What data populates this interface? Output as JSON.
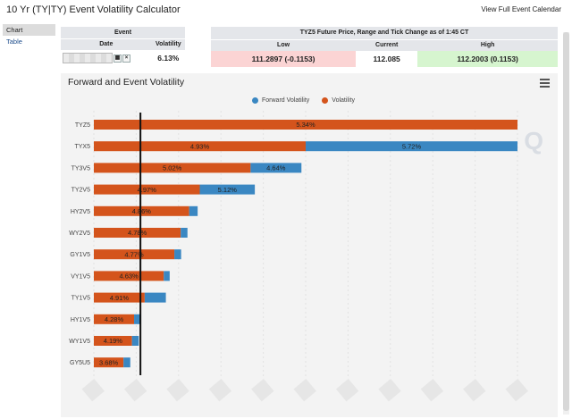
{
  "app": {
    "title": "10 Yr (TY|TY) Event Volatility Calculator",
    "calendar_link": "View Full Event Calendar"
  },
  "sidebar": {
    "items": [
      {
        "label": "Chart",
        "active": true
      },
      {
        "label": "Table",
        "active": false
      }
    ]
  },
  "event_table": {
    "title": "Event",
    "date_header": "Date",
    "volatility_header": "Volatility",
    "volatility_value": "6.13%"
  },
  "price_table": {
    "title": "TYZ5 Future Price, Range and Tick Change as of 1:45 CT",
    "low_header": "Low",
    "current_header": "Current",
    "high_header": "High",
    "low_value": "111.2897 (-0.1153)",
    "current_value": "112.085",
    "high_value": "112.2003 (0.1153)"
  },
  "chart": {
    "title": "Forward and Event Volatility",
    "watermark": "Q"
  },
  "chart_data": {
    "type": "bar",
    "orientation": "horizontal",
    "stacked": true,
    "title": "Forward and Event Volatility",
    "categories": [
      "TYZ5",
      "TYX5",
      "TY3V5",
      "TY2V5",
      "HY2V5",
      "WY2V5",
      "GY1V5",
      "VY1V5",
      "TY1V5",
      "HY1V5",
      "WY1V5",
      "GY5U5"
    ],
    "series": [
      {
        "name": "Volatility",
        "color": "#d4541c",
        "values": [
          5.34,
          4.93,
          5.02,
          4.97,
          4.86,
          4.78,
          4.77,
          4.63,
          4.91,
          4.28,
          4.19,
          3.68
        ],
        "labels": [
          "5.34%",
          "4.93%",
          "5.02%",
          "4.97%",
          "4.86%",
          "4.78%",
          "4.77%",
          "4.63%",
          "4.91%",
          "4.28%",
          "4.19%",
          "3.68%"
        ]
      },
      {
        "name": "Forward Volatility",
        "color": "#3a87c2",
        "values": [
          null,
          5.72,
          4.64,
          5.12,
          null,
          null,
          null,
          null,
          null,
          null,
          null,
          null
        ],
        "labels": [
          "",
          "5.72%",
          "4.64%",
          "5.12%",
          "",
          "",
          "",
          "",
          "",
          "",
          "",
          ""
        ]
      }
    ],
    "bar_extent_share": [
      [
        1.0,
        0
      ],
      [
        0.5,
        0.5
      ],
      [
        0.37,
        0.12
      ],
      [
        0.25,
        0.13
      ],
      [
        0.225,
        0.02
      ],
      [
        0.205,
        0.016
      ],
      [
        0.19,
        0.016
      ],
      [
        0.165,
        0.014
      ],
      [
        0.12,
        0.05
      ],
      [
        0.095,
        0.016
      ],
      [
        0.09,
        0.016
      ],
      [
        0.07,
        0.016
      ]
    ],
    "reference_line_share": 0.11,
    "legend_position": "top"
  }
}
